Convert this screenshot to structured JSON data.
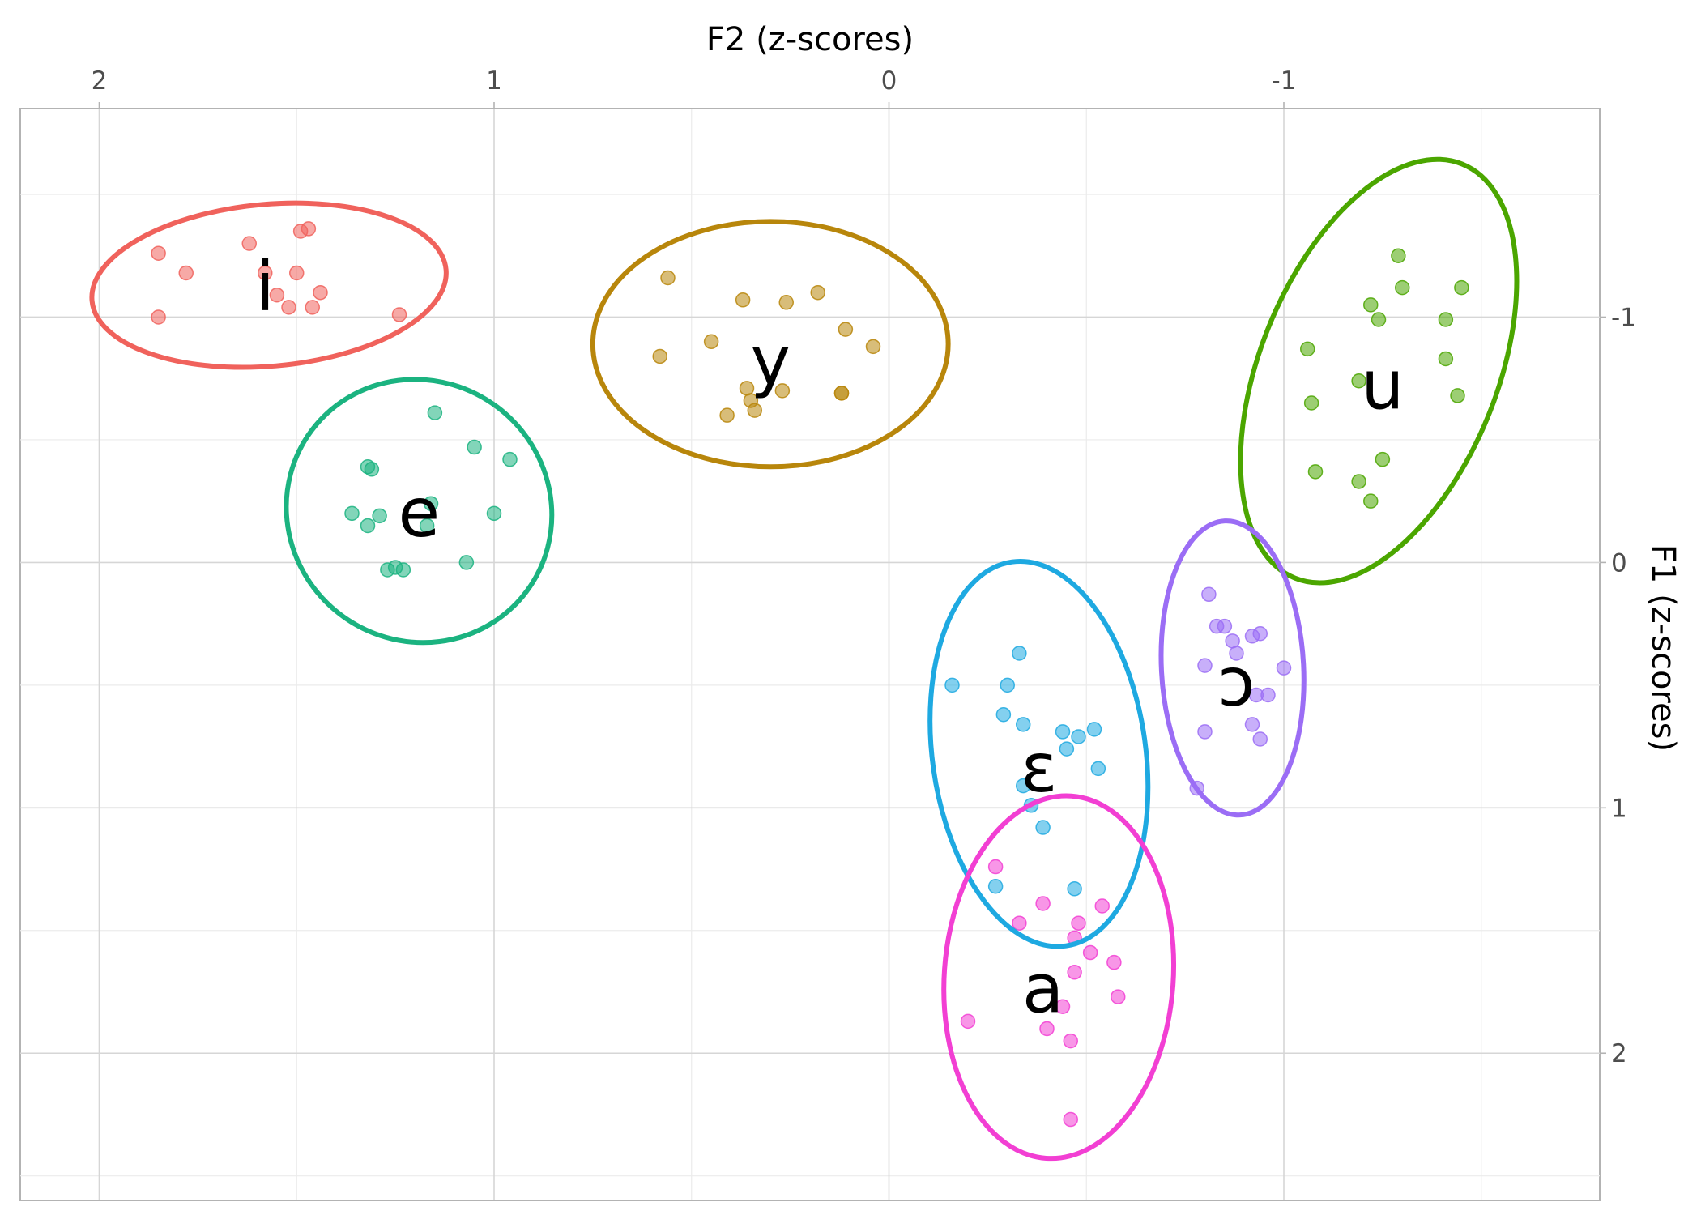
{
  "chart_data": {
    "type": "scatter",
    "title": "",
    "xlabel": "F2 (z-scores)",
    "ylabel": "F1 (z-scores)",
    "x_axis_position": "top",
    "y_axis_position": "right",
    "x_reversed": true,
    "y_reversed": true,
    "xlim": [
      2.2,
      -1.8
    ],
    "ylim": [
      -1.85,
      2.6
    ],
    "x_ticks": [
      2,
      1,
      0,
      -1
    ],
    "y_ticks": [
      -1,
      0,
      1,
      2
    ],
    "x_minor_ticks": [
      1.5,
      0.5,
      -0.5,
      -1.5
    ],
    "y_minor_ticks": [
      -1.5,
      -0.5,
      0.5,
      1.5,
      2.5
    ],
    "grid": true,
    "legend": "none",
    "series": [
      {
        "name": "i",
        "color": "#F0625C",
        "ellipse": {
          "cx": 1.57,
          "cy": -1.13,
          "rx": 0.45,
          "ry": 0.33,
          "angle_deg": -5
        },
        "label_at": [
          1.58,
          -1.12
        ],
        "points": [
          [
            1.85,
            -1.26
          ],
          [
            1.78,
            -1.18
          ],
          [
            1.62,
            -1.3
          ],
          [
            1.58,
            -1.18
          ],
          [
            1.5,
            -1.18
          ],
          [
            1.49,
            -1.35
          ],
          [
            1.47,
            -1.36
          ],
          [
            1.44,
            -1.1
          ],
          [
            1.55,
            -1.09
          ],
          [
            1.52,
            -1.04
          ],
          [
            1.46,
            -1.04
          ],
          [
            1.85,
            -1.0
          ],
          [
            1.24,
            -1.01
          ]
        ]
      },
      {
        "name": "y",
        "color": "#B8860B",
        "ellipse": {
          "cx": 0.3,
          "cy": -0.89,
          "rx": 0.45,
          "ry": 0.5,
          "angle_deg": 0
        },
        "label_at": [
          0.3,
          -0.82
        ],
        "points": [
          [
            0.56,
            -1.16
          ],
          [
            0.37,
            -1.07
          ],
          [
            0.26,
            -1.06
          ],
          [
            0.18,
            -1.1
          ],
          [
            0.11,
            -0.95
          ],
          [
            0.04,
            -0.88
          ],
          [
            0.58,
            -0.84
          ],
          [
            0.45,
            -0.9
          ],
          [
            0.36,
            -0.71
          ],
          [
            0.27,
            -0.7
          ],
          [
            0.35,
            -0.66
          ],
          [
            0.34,
            -0.62
          ],
          [
            0.41,
            -0.6
          ],
          [
            0.12,
            -0.69
          ],
          [
            0.12,
            -0.69
          ]
        ]
      },
      {
        "name": "u",
        "color": "#4BA600",
        "ellipse": {
          "cx": -1.24,
          "cy": -0.78,
          "rx": 0.3,
          "ry": 0.91,
          "angle_deg": 22
        },
        "label_at": [
          -1.25,
          -0.72
        ],
        "points": [
          [
            -1.29,
            -1.25
          ],
          [
            -1.3,
            -1.12
          ],
          [
            -1.45,
            -1.12
          ],
          [
            -1.22,
            -1.05
          ],
          [
            -1.41,
            -0.99
          ],
          [
            -1.24,
            -0.99
          ],
          [
            -1.06,
            -0.87
          ],
          [
            -1.19,
            -0.74
          ],
          [
            -1.41,
            -0.83
          ],
          [
            -1.44,
            -0.68
          ],
          [
            -1.07,
            -0.65
          ],
          [
            -1.25,
            -0.42
          ],
          [
            -1.08,
            -0.37
          ],
          [
            -1.19,
            -0.33
          ],
          [
            -1.22,
            -0.25
          ]
        ]
      },
      {
        "name": "e",
        "color": "#1BB380",
        "ellipse": {
          "cx": 1.19,
          "cy": -0.21,
          "rx": 0.34,
          "ry": 0.53,
          "angle_deg": 37
        },
        "label_at": [
          1.19,
          -0.2
        ],
        "points": [
          [
            1.15,
            -0.61
          ],
          [
            1.05,
            -0.47
          ],
          [
            0.96,
            -0.42
          ],
          [
            1.31,
            -0.38
          ],
          [
            1.32,
            -0.39
          ],
          [
            1.16,
            -0.24
          ],
          [
            1.36,
            -0.2
          ],
          [
            1.29,
            -0.19
          ],
          [
            1.32,
            -0.15
          ],
          [
            1.17,
            -0.15
          ],
          [
            1.0,
            -0.2
          ],
          [
            1.25,
            0.02
          ],
          [
            1.23,
            0.03
          ],
          [
            1.27,
            0.03
          ],
          [
            1.07,
            0.0
          ]
        ]
      },
      {
        "name": "ɔ",
        "color": "#9B6DF5",
        "ellipse": {
          "cx": -0.87,
          "cy": 0.43,
          "rx": 0.18,
          "ry": 0.6,
          "angle_deg": -3
        },
        "label_at": [
          -0.88,
          0.49
        ],
        "points": [
          [
            -0.81,
            0.13
          ],
          [
            -0.83,
            0.26
          ],
          [
            -0.85,
            0.26
          ],
          [
            -0.87,
            0.32
          ],
          [
            -0.92,
            0.3
          ],
          [
            -0.94,
            0.29
          ],
          [
            -0.88,
            0.37
          ],
          [
            -0.8,
            0.42
          ],
          [
            -1.0,
            0.43
          ],
          [
            -0.93,
            0.54
          ],
          [
            -0.96,
            0.54
          ],
          [
            -0.92,
            0.66
          ],
          [
            -0.8,
            0.69
          ],
          [
            -0.94,
            0.72
          ],
          [
            -0.78,
            0.92
          ]
        ]
      },
      {
        "name": "ɛ",
        "color": "#1EA9E1",
        "ellipse": {
          "cx": -0.38,
          "cy": 0.78,
          "rx": 0.27,
          "ry": 0.79,
          "angle_deg": -8
        },
        "label_at": [
          -0.38,
          0.84
        ],
        "points": [
          [
            -0.33,
            0.37
          ],
          [
            -0.16,
            0.5
          ],
          [
            -0.3,
            0.5
          ],
          [
            -0.29,
            0.62
          ],
          [
            -0.34,
            0.66
          ],
          [
            -0.44,
            0.69
          ],
          [
            -0.48,
            0.71
          ],
          [
            -0.52,
            0.68
          ],
          [
            -0.45,
            0.76
          ],
          [
            -0.53,
            0.84
          ],
          [
            -0.34,
            0.91
          ],
          [
            -0.36,
            0.99
          ],
          [
            -0.39,
            1.08
          ],
          [
            -0.27,
            1.32
          ],
          [
            -0.47,
            1.33
          ]
        ]
      },
      {
        "name": "a",
        "color": "#F23FD3",
        "ellipse": {
          "cx": -0.43,
          "cy": 1.69,
          "rx": 0.29,
          "ry": 0.74,
          "angle_deg": 4
        },
        "label_at": [
          -0.39,
          1.74
        ],
        "points": [
          [
            -0.27,
            1.24
          ],
          [
            -0.39,
            1.39
          ],
          [
            -0.54,
            1.4
          ],
          [
            -0.33,
            1.47
          ],
          [
            -0.48,
            1.47
          ],
          [
            -0.47,
            1.53
          ],
          [
            -0.51,
            1.59
          ],
          [
            -0.57,
            1.63
          ],
          [
            -0.47,
            1.67
          ],
          [
            -0.58,
            1.77
          ],
          [
            -0.2,
            1.87
          ],
          [
            -0.44,
            1.81
          ],
          [
            -0.4,
            1.9
          ],
          [
            -0.46,
            1.95
          ],
          [
            -0.46,
            2.27
          ]
        ]
      }
    ]
  }
}
